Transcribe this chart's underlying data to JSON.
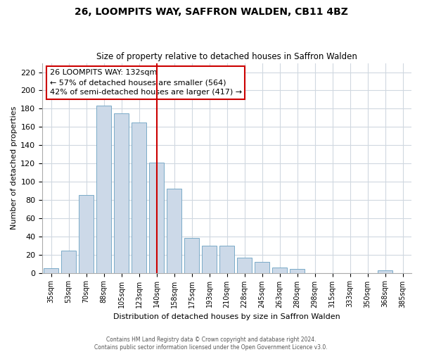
{
  "title": "26, LOOMPITS WAY, SAFFRON WALDEN, CB11 4BZ",
  "subtitle": "Size of property relative to detached houses in Saffron Walden",
  "xlabel": "Distribution of detached houses by size in Saffron Walden",
  "ylabel": "Number of detached properties",
  "bar_labels": [
    "35sqm",
    "53sqm",
    "70sqm",
    "88sqm",
    "105sqm",
    "123sqm",
    "140sqm",
    "158sqm",
    "175sqm",
    "193sqm",
    "210sqm",
    "228sqm",
    "245sqm",
    "263sqm",
    "280sqm",
    "298sqm",
    "315sqm",
    "333sqm",
    "350sqm",
    "368sqm",
    "385sqm"
  ],
  "bar_heights": [
    5,
    24,
    85,
    183,
    175,
    165,
    121,
    92,
    38,
    30,
    30,
    17,
    12,
    6,
    4,
    0,
    0,
    0,
    0,
    3,
    0
  ],
  "bar_color": "#ccd9e8",
  "bar_edge_color": "#7aaac8",
  "vline_x_idx": 6,
  "vline_color": "#cc0000",
  "annotation_lines": [
    "26 LOOMPITS WAY: 132sqm",
    "← 57% of detached houses are smaller (564)",
    "42% of semi-detached houses are larger (417) →"
  ],
  "annotation_box_color": "#ffffff",
  "annotation_box_edge": "#cc0000",
  "ylim": [
    0,
    230
  ],
  "yticks": [
    0,
    20,
    40,
    60,
    80,
    100,
    120,
    140,
    160,
    180,
    200,
    220
  ],
  "footer_lines": [
    "Contains HM Land Registry data © Crown copyright and database right 2024.",
    "Contains public sector information licensed under the Open Government Licence v3.0."
  ],
  "bg_color": "#ffffff",
  "grid_color": "#d0d8e0"
}
